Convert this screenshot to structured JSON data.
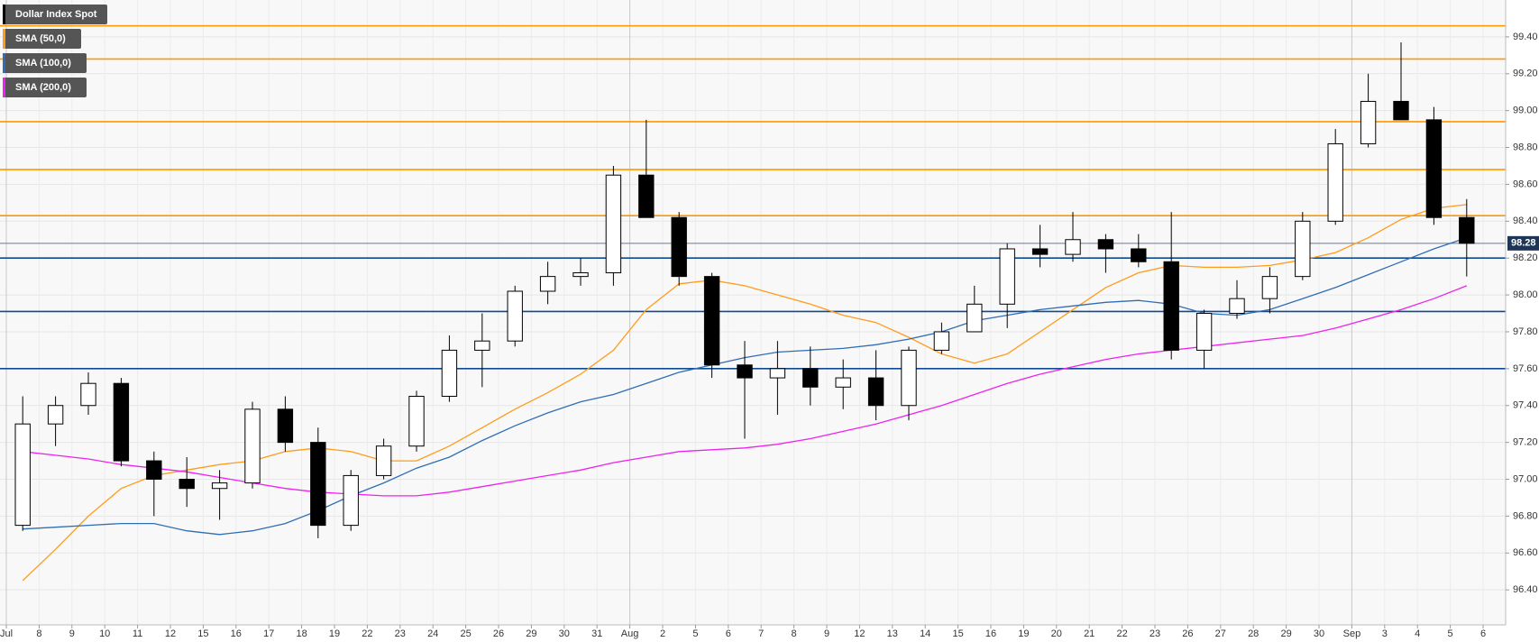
{
  "chart_data": {
    "type": "candlestick",
    "categories": [
      "Jul",
      "8",
      "9",
      "10",
      "11",
      "12",
      "15",
      "16",
      "17",
      "18",
      "19",
      "22",
      "23",
      "24",
      "25",
      "26",
      "29",
      "30",
      "31",
      "Aug",
      "2",
      "5",
      "6",
      "7",
      "8",
      "9",
      "12",
      "13",
      "14",
      "15",
      "16",
      "19",
      "20",
      "21",
      "22",
      "23",
      "26",
      "27",
      "28",
      "29",
      "30",
      "Sep",
      "3",
      "4",
      "5",
      "6"
    ],
    "candles": {
      "name": "Dollar Index Spot",
      "color": "#000000",
      "open": [
        96.75,
        97.3,
        97.4,
        97.52,
        97.1,
        97.0,
        96.95,
        96.98,
        97.38,
        97.2,
        96.75,
        97.02,
        97.18,
        97.45,
        97.7,
        97.75,
        98.02,
        98.1,
        98.12,
        98.65,
        98.42,
        98.1,
        97.62,
        97.55,
        97.6,
        97.5,
        97.55,
        97.4,
        97.7,
        97.8,
        97.95,
        98.25,
        98.22,
        98.3,
        98.25,
        98.18,
        97.7,
        97.9,
        97.98,
        98.1,
        98.4,
        98.82,
        99.05,
        98.95,
        98.42,
        null
      ],
      "high": [
        97.45,
        97.45,
        97.58,
        97.55,
        97.15,
        97.12,
        97.05,
        97.42,
        97.45,
        97.28,
        97.05,
        97.22,
        97.48,
        97.78,
        97.9,
        98.05,
        98.18,
        98.2,
        98.7,
        98.95,
        98.45,
        98.12,
        97.75,
        97.75,
        97.72,
        97.65,
        97.7,
        97.72,
        97.85,
        98.05,
        98.28,
        98.38,
        98.45,
        98.33,
        98.33,
        98.45,
        97.92,
        98.08,
        98.15,
        98.45,
        98.9,
        99.2,
        99.37,
        99.02,
        98.52,
        null
      ],
      "low": [
        96.72,
        97.18,
        97.35,
        97.07,
        96.8,
        96.85,
        96.78,
        96.95,
        97.15,
        96.68,
        96.72,
        97.0,
        97.15,
        97.42,
        97.5,
        97.72,
        97.95,
        98.05,
        98.05,
        98.6,
        98.05,
        97.55,
        97.22,
        97.35,
        97.4,
        97.38,
        97.32,
        97.32,
        97.68,
        97.8,
        97.82,
        98.15,
        98.18,
        98.12,
        98.15,
        97.65,
        97.6,
        97.87,
        97.9,
        98.08,
        98.38,
        98.8,
        98.95,
        98.38,
        98.1,
        null
      ],
      "close": [
        97.3,
        97.4,
        97.52,
        97.1,
        97.0,
        96.95,
        96.98,
        97.38,
        97.2,
        96.75,
        97.02,
        97.18,
        97.45,
        97.7,
        97.75,
        98.02,
        98.1,
        98.12,
        98.65,
        98.42,
        98.1,
        97.62,
        97.55,
        97.6,
        97.5,
        97.55,
        97.4,
        97.7,
        97.8,
        97.95,
        98.25,
        98.22,
        98.3,
        98.25,
        98.18,
        97.7,
        97.9,
        97.98,
        98.1,
        98.4,
        98.82,
        99.05,
        98.95,
        98.42,
        98.28,
        null
      ]
    },
    "series": [
      {
        "name": "SMA (50,0)",
        "color": "#ff9c1a",
        "values": [
          96.45,
          96.62,
          96.8,
          96.95,
          97.02,
          97.05,
          97.08,
          97.1,
          97.15,
          97.17,
          97.15,
          97.1,
          97.1,
          97.18,
          97.28,
          97.38,
          97.47,
          97.57,
          97.7,
          97.92,
          98.06,
          98.08,
          98.05,
          98.0,
          97.95,
          97.89,
          97.85,
          97.77,
          97.68,
          97.63,
          97.68,
          97.8,
          97.92,
          98.04,
          98.12,
          98.16,
          98.15,
          98.15,
          98.16,
          98.19,
          98.23,
          98.31,
          98.41,
          98.47,
          98.49,
          null
        ]
      },
      {
        "name": "SMA (100,0)",
        "color": "#2f6db5",
        "values": [
          96.73,
          96.74,
          96.75,
          96.76,
          96.76,
          96.72,
          96.7,
          96.72,
          96.76,
          96.83,
          96.91,
          96.98,
          97.06,
          97.12,
          97.21,
          97.29,
          97.36,
          97.42,
          97.46,
          97.52,
          97.58,
          97.62,
          97.66,
          97.69,
          97.7,
          97.71,
          97.73,
          97.76,
          97.8,
          97.86,
          97.89,
          97.92,
          97.94,
          97.96,
          97.97,
          97.95,
          97.9,
          97.89,
          97.92,
          97.98,
          98.04,
          98.11,
          98.18,
          98.25,
          98.31,
          null
        ]
      },
      {
        "name": "SMA (200,0)",
        "color": "#ee22ee",
        "values": [
          97.15,
          97.13,
          97.11,
          97.08,
          97.06,
          97.04,
          97.01,
          96.98,
          96.95,
          96.93,
          96.92,
          96.91,
          96.91,
          96.93,
          96.96,
          96.99,
          97.02,
          97.05,
          97.09,
          97.12,
          97.15,
          97.16,
          97.17,
          97.19,
          97.22,
          97.26,
          97.3,
          97.35,
          97.4,
          97.46,
          97.52,
          97.57,
          97.61,
          97.65,
          97.68,
          97.7,
          97.72,
          97.74,
          97.76,
          97.78,
          97.82,
          97.87,
          97.92,
          97.98,
          98.05,
          null
        ]
      }
    ],
    "hlines": [
      {
        "value": 99.46,
        "color": "#ff9800"
      },
      {
        "value": 99.28,
        "color": "#ff9800"
      },
      {
        "value": 98.94,
        "color": "#ff9800"
      },
      {
        "value": 98.68,
        "color": "#ff9800"
      },
      {
        "value": 98.43,
        "color": "#ff9800"
      },
      {
        "value": 98.2,
        "color": "#0d4a94"
      },
      {
        "value": 97.91,
        "color": "#0d4a94"
      },
      {
        "value": 97.6,
        "color": "#0d4a94"
      }
    ],
    "last_price": 98.28,
    "ylim": [
      96.21,
      99.6
    ],
    "yticks": [
      {
        "value": 96.4,
        "label": "96.40"
      },
      {
        "value": 96.6,
        "label": "96.60"
      },
      {
        "value": 96.8,
        "label": "96.80"
      },
      {
        "value": 97.0,
        "label": "97.00"
      },
      {
        "value": 97.2,
        "label": "97.20"
      },
      {
        "value": 97.4,
        "label": "97.40"
      },
      {
        "value": 97.6,
        "label": "97.60"
      },
      {
        "value": 97.8,
        "label": "97.80"
      },
      {
        "value": 98.0,
        "label": "98.00"
      },
      {
        "value": 98.2,
        "label": "98.20"
      },
      {
        "value": 98.4,
        "label": "98.40"
      },
      {
        "value": 98.6,
        "label": "98.60"
      },
      {
        "value": 98.8,
        "label": "98.80"
      },
      {
        "value": 99.0,
        "label": "99.00"
      },
      {
        "value": 99.2,
        "label": "99.20"
      },
      {
        "value": 99.4,
        "label": "99.40"
      }
    ],
    "grid": true
  }
}
